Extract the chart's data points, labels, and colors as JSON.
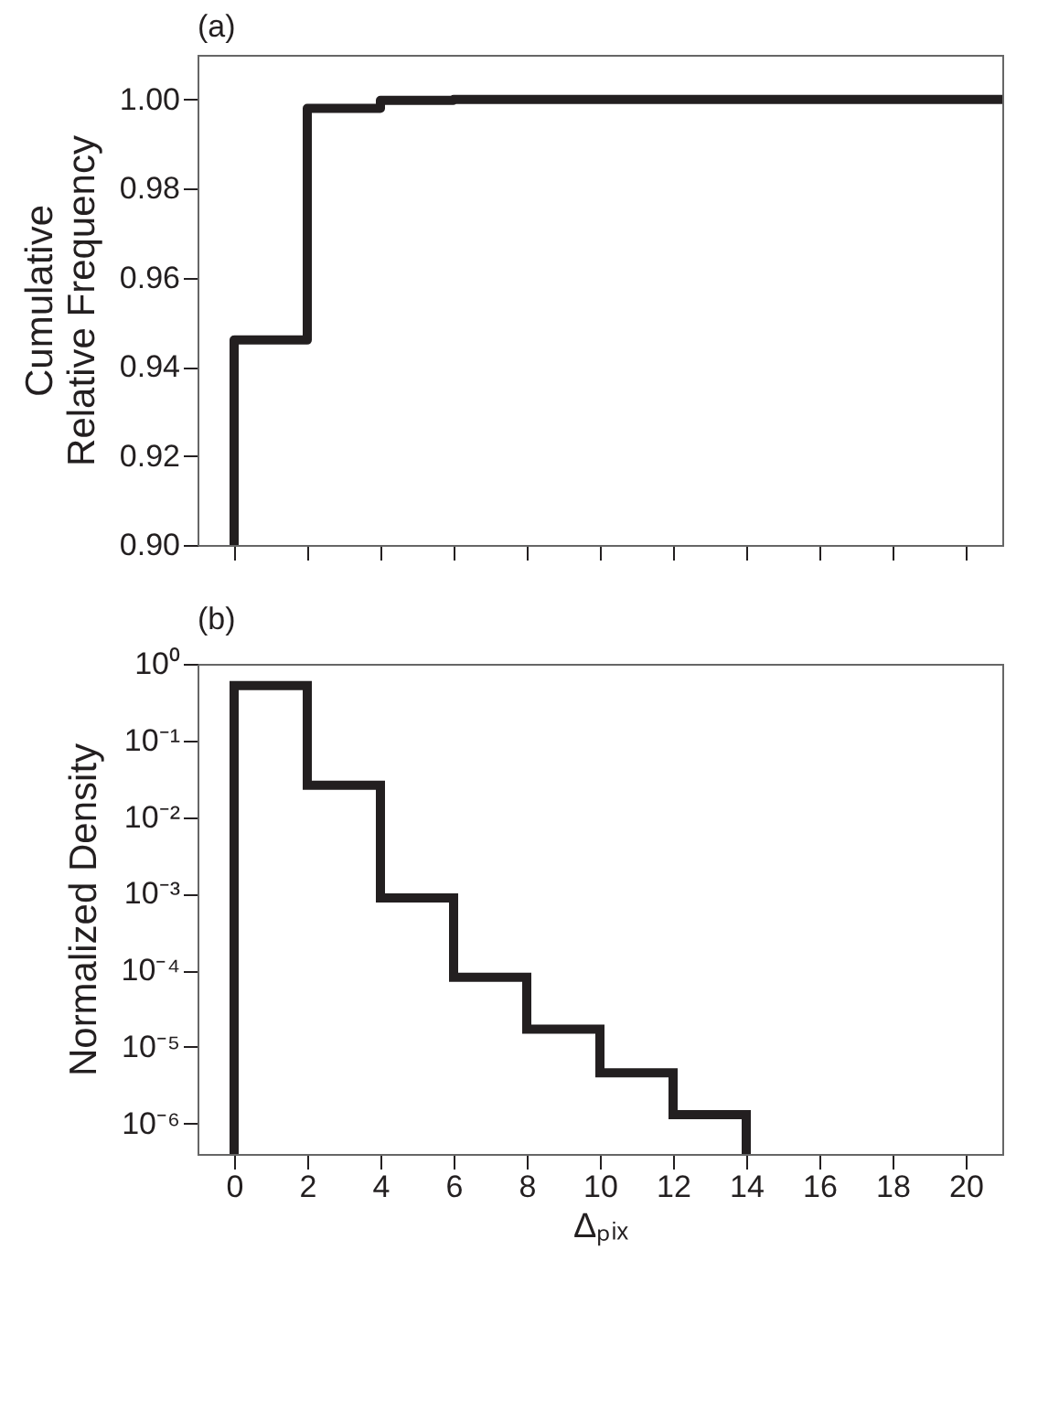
{
  "chart_data": [
    {
      "type": "step",
      "title": "(a)",
      "ylabel": "Cumulative\nRelative Frequency",
      "x": [
        0,
        0,
        2,
        4,
        6,
        21
      ],
      "series": [
        {
          "color": "#231f20",
          "values": [
            0.9,
            0.946,
            0.998,
            0.9998,
            1.0,
            1.0
          ]
        }
      ],
      "xlim": [
        -1,
        21
      ],
      "xticks": [
        0,
        2,
        4,
        6,
        8,
        10,
        12,
        14,
        16,
        18,
        20
      ],
      "ylim": [
        0.9,
        1.01
      ],
      "yticks": [
        {
          "value": 0.9,
          "label": "0.90"
        },
        0.92,
        0.94,
        0.96,
        0.98,
        {
          "value": 1.0,
          "label": "1.00"
        }
      ],
      "tick_labels": "y",
      "grid": false
    },
    {
      "type": "histogram",
      "title": "(b)",
      "xlabel": "Δₚᵢₓ",
      "ylabel": "Normalized Density",
      "log": "y",
      "bins": [
        0,
        2,
        4,
        6,
        8,
        10,
        12,
        14
      ],
      "values": [
        0.52,
        0.026,
        0.00088,
        8.1e-05,
        1.7e-05,
        4.6e-06,
        1.3e-06
      ],
      "color": "#231f20",
      "xlim": [
        -1,
        21
      ],
      "xticks": [
        0,
        2,
        4,
        6,
        8,
        10,
        12,
        14,
        16,
        18,
        20
      ],
      "ylim": [
        4e-07,
        1
      ],
      "yticks": [
        {
          "value": 1e-06,
          "label": "10⁻⁶"
        },
        {
          "value": 1e-05,
          "label": "10⁻⁵"
        },
        {
          "value": 0.0001,
          "label": "10⁻⁴"
        },
        {
          "value": 0.001,
          "label": "10⁻³"
        },
        {
          "value": 0.01,
          "label": "10⁻²"
        },
        {
          "value": 0.1,
          "label": "10⁻¹"
        },
        {
          "value": 1,
          "label": "10⁰"
        }
      ],
      "grid": false
    }
  ]
}
